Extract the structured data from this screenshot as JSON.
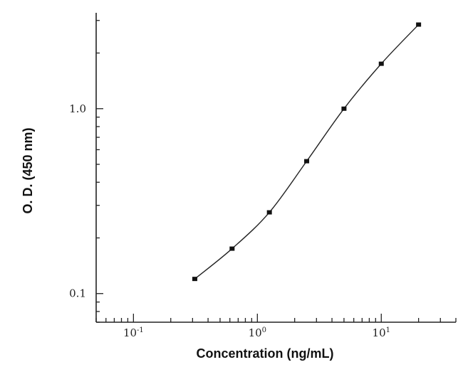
{
  "chart_data": {
    "type": "line",
    "title": "",
    "xlabel": "Concentration (ng/mL)",
    "ylabel": "O. D. (450 nm)",
    "x_scale": "log",
    "y_scale": "log",
    "xlim": [
      0.05,
      40
    ],
    "ylim": [
      0.07,
      3.3
    ],
    "x_ticks": [
      {
        "value": 0.1,
        "base": "10",
        "exp": "-1"
      },
      {
        "value": 1,
        "base": "10",
        "exp": "0"
      },
      {
        "value": 10,
        "base": "10",
        "exp": "1"
      }
    ],
    "y_ticks": [
      {
        "value": 0.1,
        "label": "0.1"
      },
      {
        "value": 1,
        "label": "1.0"
      }
    ],
    "grid": false,
    "series": [
      {
        "x": [
          0.3125,
          0.625,
          1.25,
          2.5,
          5,
          10,
          20
        ],
        "y": [
          0.12,
          0.175,
          0.275,
          0.52,
          1.0,
          1.75,
          2.85
        ]
      }
    ]
  }
}
